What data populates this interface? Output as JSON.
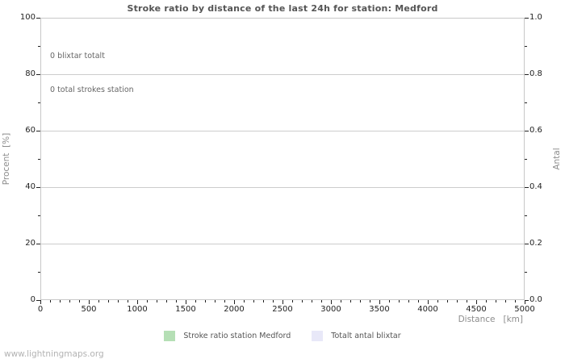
{
  "page": {
    "background": "#ffffff"
  },
  "footer": {
    "watermark": "www.lightningmaps.org"
  },
  "colors": {
    "title": "#555555",
    "tick_label": "#222222",
    "tick_mark": "#222222",
    "axis_title": "#8c8c8c",
    "annotation": "#666666",
    "gridline": "#cccccc",
    "plot_border": "#c8c8c8",
    "legend_text": "#555555",
    "watermark": "#b3b3b3",
    "series_ratio_green": "#b5dfb5",
    "series_total_lavender": "#e8e8f8"
  },
  "chart_data": {
    "type": "line",
    "title": "Stroke ratio by distance of the last 24h for station: Medford",
    "annotations": [
      "0 blixtar totalt",
      "0 total strokes station"
    ],
    "x": [],
    "series": [
      {
        "name": "Stroke ratio station Medford",
        "color": "#b5dfb5",
        "axis": "left",
        "values": []
      },
      {
        "name": "Totalt antal blixtar",
        "color": "#e8e8f8",
        "axis": "right",
        "values": []
      }
    ],
    "axes": {
      "x": {
        "label": "Distance   [km]",
        "min": 0,
        "max": 5000,
        "major_ticks": [
          0,
          500,
          1000,
          1500,
          2000,
          2500,
          3000,
          3500,
          4000,
          4500,
          5000
        ],
        "minor_step": 100
      },
      "y_left": {
        "label": "Procent  [%]",
        "min": 0,
        "max": 100,
        "major_ticks": [
          0,
          20,
          40,
          60,
          80,
          100
        ],
        "minor_step": 10
      },
      "y_right": {
        "label": "Antal",
        "min": 0,
        "max": 1,
        "major_tick_labels": [
          "0.0",
          "0.2",
          "0.4",
          "0.6",
          "0.8",
          "1.0"
        ],
        "minor_step": 0.1
      }
    },
    "grid": "horizontal-major",
    "legend_position": "bottom-center"
  }
}
